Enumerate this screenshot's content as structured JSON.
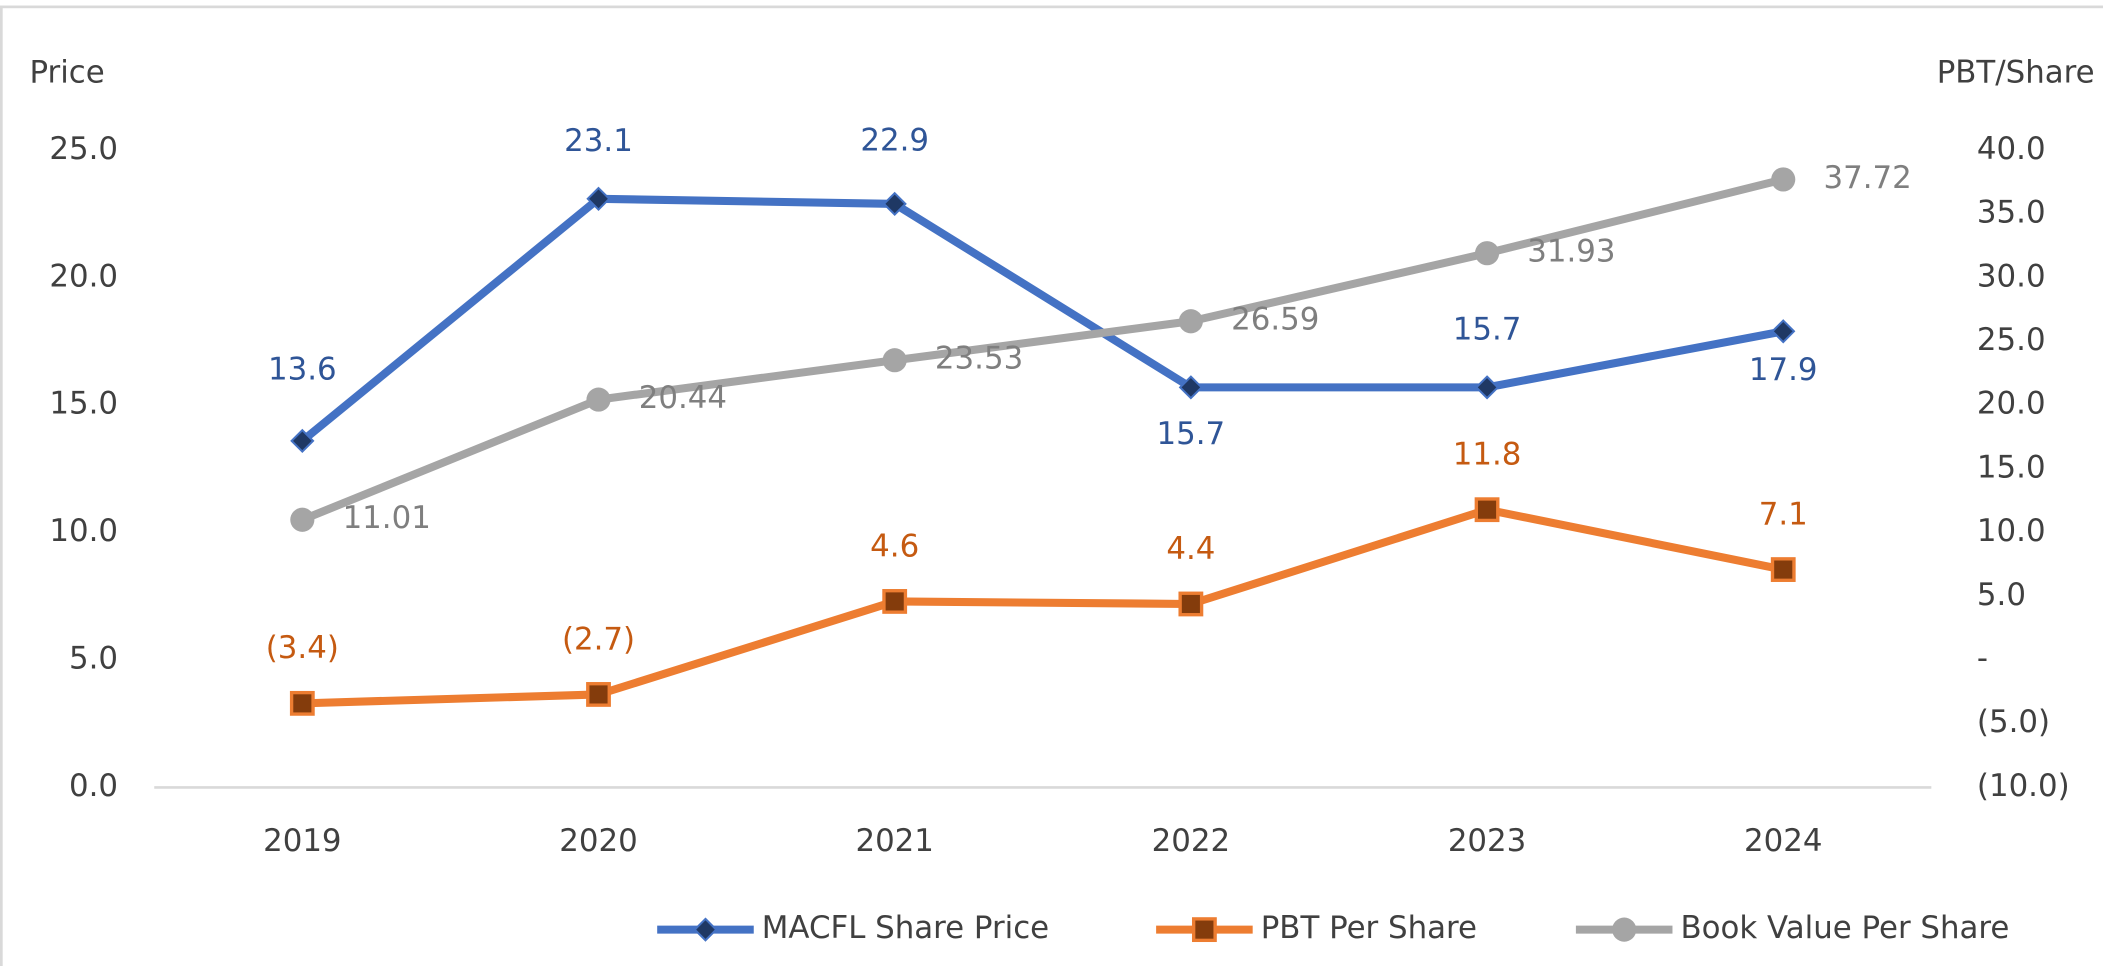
{
  "chart_data": {
    "type": "line",
    "y_label": "Price",
    "y2_label": "PBT/Share",
    "categories": [
      "2019",
      "2020",
      "2021",
      "2022",
      "2023",
      "2024"
    ],
    "series": [
      {
        "name": "MACFL Share Price",
        "color": "#4472c4",
        "values": [
          13.6,
          23.1,
          22.9,
          15.7,
          15.7,
          17.9
        ]
      },
      {
        "name": "PBT Per Share",
        "color": "#ed7d31",
        "axis": "y2",
        "values": [
          -3.4,
          -2.7,
          4.6,
          4.4,
          11.8,
          7.1
        ],
        "value_labels": [
          "(3.4)",
          "(2.7)",
          "4.6",
          "4.4",
          "11.8",
          "7.1"
        ]
      },
      {
        "name": "Book Value Per Share",
        "color": "#a5a5a5",
        "axis": "y2",
        "values": [
          11.01,
          20.44,
          23.53,
          26.59,
          31.93,
          37.72
        ]
      }
    ],
    "ylim": [
      0,
      25
    ],
    "yticks": [
      {
        "value": 0,
        "label": "0.0"
      },
      {
        "value": 5,
        "label": "5.0"
      },
      {
        "value": 10,
        "label": "10.0"
      },
      {
        "value": 15,
        "label": "15.0"
      },
      {
        "value": 20,
        "label": "20.0"
      },
      {
        "value": 25,
        "label": "25.0"
      }
    ],
    "y2lim": [
      -10,
      40
    ],
    "y2ticks": [
      {
        "value": -10,
        "label": "(10.0)"
      },
      {
        "value": -5,
        "label": "(5.0)"
      },
      {
        "value": 0,
        "label": "-"
      },
      {
        "value": 5,
        "label": "5.0"
      },
      {
        "value": 10,
        "label": "10.0"
      },
      {
        "value": 15,
        "label": "15.0"
      },
      {
        "value": 20,
        "label": "20.0"
      },
      {
        "value": 25,
        "label": "25.0"
      },
      {
        "value": 30,
        "label": "30.0"
      },
      {
        "value": 35,
        "label": "35.0"
      },
      {
        "value": 40,
        "label": "40.0"
      }
    ],
    "legend": "bottom"
  }
}
